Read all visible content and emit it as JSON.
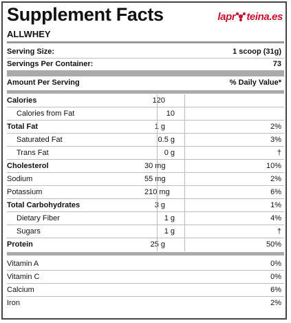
{
  "title": "Supplement Facts",
  "logo": {
    "prefix": "lapr",
    "suffix": "teina.es"
  },
  "product": "ALLWHEY",
  "serving": {
    "size_label": "Serving Size:",
    "size_value": "1 scoop (31g)",
    "per_container_label": "Servings Per Container:",
    "per_container_value": "73"
  },
  "header": {
    "amount": "Amount Per Serving",
    "dv": "% Daily Value*"
  },
  "nutrients": [
    {
      "name": "Calories",
      "amount": "120",
      "dv": "",
      "bold": true,
      "sub": false
    },
    {
      "name": "Calories from Fat",
      "amount": "10",
      "dv": "",
      "bold": false,
      "sub": true
    },
    {
      "name": "Total Fat",
      "amount": "1 g",
      "dv": "2%",
      "bold": true,
      "sub": false
    },
    {
      "name": "Saturated Fat",
      "amount": "0.5 g",
      "dv": "3%",
      "bold": false,
      "sub": true
    },
    {
      "name": "Trans Fat",
      "amount": "0 g",
      "dv": "†",
      "bold": false,
      "sub": true
    },
    {
      "name": "Cholesterol",
      "amount": "30 mg",
      "dv": "10%",
      "bold": true,
      "sub": false
    },
    {
      "name": "Sodium",
      "amount": "55 mg",
      "dv": "2%",
      "bold": false,
      "sub": false
    },
    {
      "name": "Potassium",
      "amount": "210 mg",
      "dv": "6%",
      "bold": false,
      "sub": false
    },
    {
      "name": "Total Carbohydrates",
      "amount": "3 g",
      "dv": "1%",
      "bold": true,
      "sub": false
    },
    {
      "name": "Dietary Fiber",
      "amount": "1 g",
      "dv": "4%",
      "bold": false,
      "sub": true
    },
    {
      "name": "Sugars",
      "amount": "1 g",
      "dv": "†",
      "bold": false,
      "sub": true
    },
    {
      "name": "Protein",
      "amount": "25 g",
      "dv": "50%",
      "bold": true,
      "sub": false
    }
  ],
  "vitamins": [
    {
      "name": "Vitamin A",
      "dv": "0%"
    },
    {
      "name": "Vitamin C",
      "dv": "0%"
    },
    {
      "name": "Calcium",
      "dv": "6%"
    },
    {
      "name": "Iron",
      "dv": "2%"
    }
  ],
  "colors": {
    "logo": "#c8102e",
    "bars": "#aaaaaa"
  }
}
